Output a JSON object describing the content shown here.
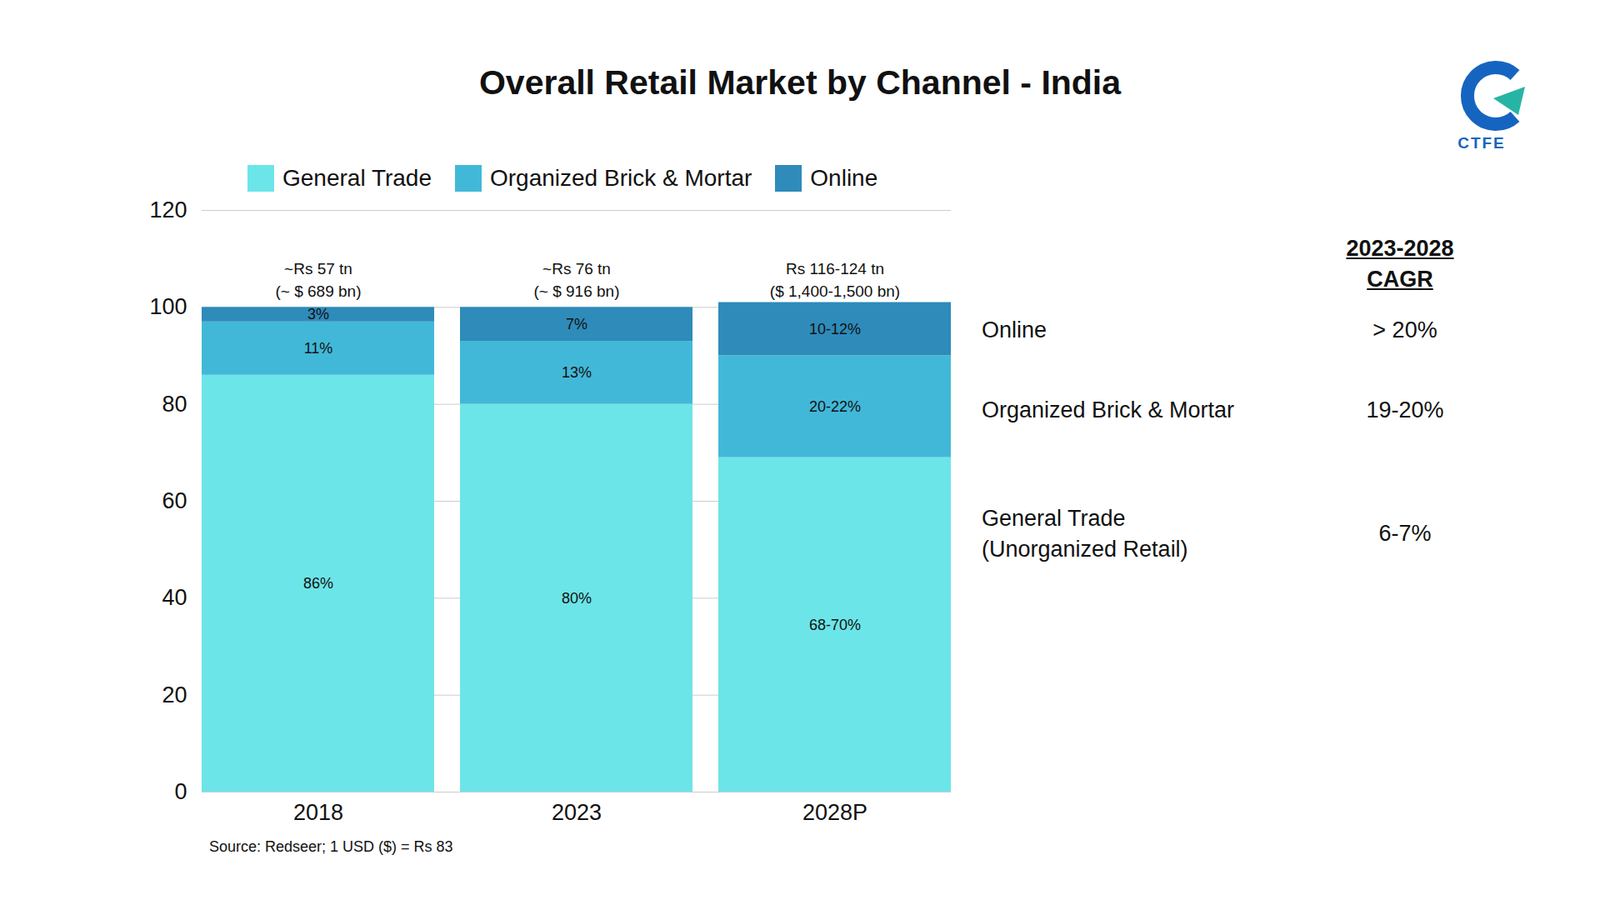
{
  "chart_data": {
    "type": "bar",
    "title": "Overall Retail Market by Channel - India",
    "categories": [
      "2018",
      "2023",
      "2028P"
    ],
    "stacked": true,
    "data_labels": true,
    "grid": true,
    "legend": "top",
    "ylim": [
      0,
      120
    ],
    "yticks": [
      0,
      20,
      40,
      60,
      80,
      100,
      120
    ],
    "series": [
      {
        "name": "General Trade",
        "color": "#6ce5e8",
        "values": [
          86,
          80,
          69
        ],
        "value_labels": [
          "86%",
          "80%",
          "68-70%"
        ]
      },
      {
        "name": "Organized Brick & Mortar",
        "color": "#42b8d8",
        "values": [
          11,
          13,
          21
        ],
        "value_labels": [
          "11%",
          "13%",
          "20-22%"
        ]
      },
      {
        "name": "Online",
        "color": "#2e8bba",
        "values": [
          3,
          7,
          11
        ],
        "value_labels": [
          "3%",
          "7%",
          "10-12%"
        ]
      }
    ],
    "totals": [
      [
        "~Rs 57 tn",
        "(~ $ 689 bn)"
      ],
      [
        "~Rs 76 tn",
        "(~ $ 916 bn)"
      ],
      [
        "Rs 116-124 tn",
        "($ 1,400-1,500 bn)"
      ]
    ],
    "cagr_table": {
      "header": [
        "2023-2028",
        "CAGR"
      ],
      "rows": [
        {
          "label": [
            "Online"
          ],
          "value": "> 20%"
        },
        {
          "label": [
            "Organized Brick & Mortar"
          ],
          "value": "19-20%"
        },
        {
          "label": [
            "General Trade",
            "(Unorganized Retail)"
          ],
          "value": "6-7%"
        }
      ]
    },
    "source": "Source: Redseer; 1 USD ($) = Rs 83",
    "logo_text": "CTFE"
  }
}
